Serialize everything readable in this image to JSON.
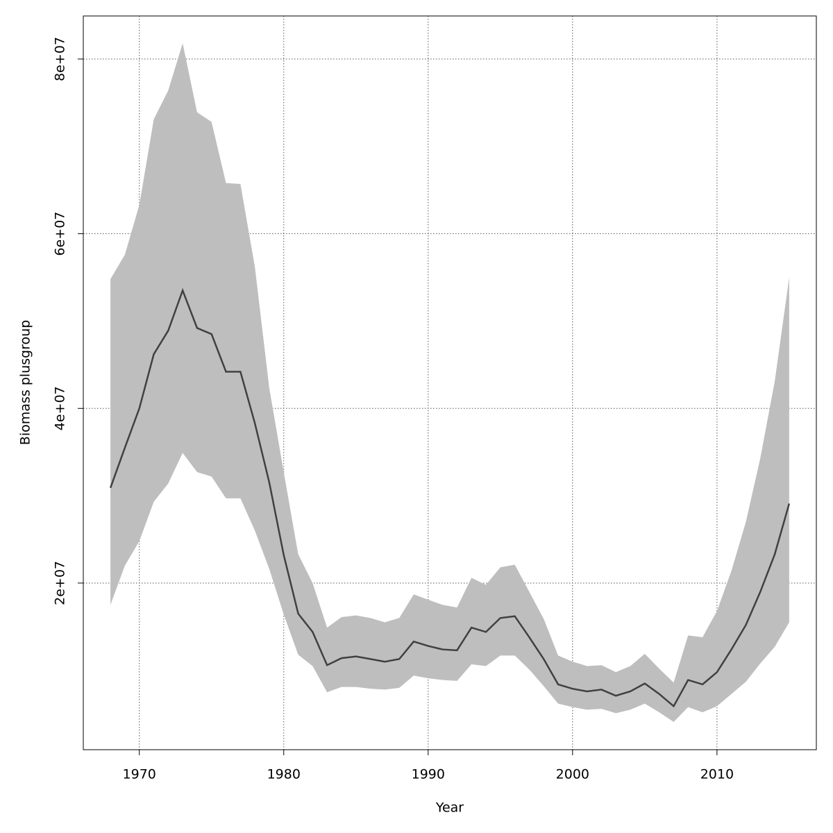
{
  "chart_data": {
    "type": "line",
    "x_label": "Year",
    "y_label": "Biomass plusgroup",
    "x": [
      1968,
      1969,
      1970,
      1971,
      1972,
      1973,
      1974,
      1975,
      1976,
      1977,
      1978,
      1979,
      1980,
      1981,
      1982,
      1983,
      1984,
      1985,
      1986,
      1987,
      1988,
      1989,
      1990,
      1991,
      1992,
      1993,
      1994,
      1995,
      1996,
      1997,
      1998,
      1999,
      2000,
      2001,
      2002,
      2003,
      2004,
      2005,
      2006,
      2007,
      2008,
      2009,
      2010,
      2011,
      2012,
      2013,
      2014,
      2015
    ],
    "series": [
      {
        "color": "#404040",
        "values": [
          30900000.0,
          35500000.0,
          40000000.0,
          46200000.0,
          48900000.0,
          53500000.0,
          49200000.0,
          48500000.0,
          44200000.0,
          44200000.0,
          38300000.0,
          31500000.0,
          23200000.0,
          16500000.0,
          14400000.0,
          10600000.0,
          11400000.0,
          11600000.0,
          11300000.0,
          11000000.0,
          11300000.0,
          13300000.0,
          12800000.0,
          12400000.0,
          12300000.0,
          14900000.0,
          14400000.0,
          16000000.0,
          16200000.0,
          13800000.0,
          11300000.0,
          8400000.0,
          7900000.0,
          7600000.0,
          7800000.0,
          7100000.0,
          7600000.0,
          8500000.0,
          7300000.0,
          5900000.0,
          8900000.0,
          8400000.0,
          9800000.0,
          12400000.0,
          15200000.0,
          19000000.0,
          23300000.0,
          29100000.0
        ]
      }
    ],
    "band": {
      "color": "#bebebe",
      "upper": [
        54800000.0,
        57600000.0,
        63300000.0,
        73100000.0,
        76400000.0,
        81800000.0,
        73900000.0,
        72800000.0,
        65800000.0,
        65700000.0,
        56200000.0,
        42300000.0,
        32700000.0,
        23300000.0,
        20000000.0,
        14900000.0,
        16100000.0,
        16300000.0,
        16000000.0,
        15500000.0,
        16000000.0,
        18700000.0,
        18100000.0,
        17500000.0,
        17200000.0,
        20600000.0,
        19800000.0,
        21800000.0,
        22100000.0,
        19000000.0,
        15900000.0,
        11700000.0,
        11000000.0,
        10500000.0,
        10600000.0,
        9800000.0,
        10500000.0,
        11900000.0,
        10200000.0,
        8600000.0,
        14000000.0,
        13800000.0,
        16800000.0,
        21400000.0,
        27000000.0,
        34300000.0,
        43100000.0,
        55000000.0
      ],
      "lower": [
        17500000.0,
        22000000.0,
        24800000.0,
        29300000.0,
        31400000.0,
        34900000.0,
        32700000.0,
        32200000.0,
        29700000.0,
        29700000.0,
        26000000.0,
        21600000.0,
        16400000.0,
        11800000.0,
        10500000.0,
        7500000.0,
        8100000.0,
        8100000.0,
        7900000.0,
        7800000.0,
        8000000.0,
        9400000.0,
        9100000.0,
        8900000.0,
        8800000.0,
        10700000.0,
        10500000.0,
        11700000.0,
        11700000.0,
        10100000.0,
        8200000.0,
        6200000.0,
        5800000.0,
        5500000.0,
        5600000.0,
        5100000.0,
        5500000.0,
        6200000.0,
        5200000.0,
        4100000.0,
        5800000.0,
        5200000.0,
        5900000.0,
        7300000.0,
        8700000.0,
        10800000.0,
        12700000.0,
        15500000.0
      ]
    },
    "xlim": [
      1966.12,
      2016.88
    ],
    "xticks": [
      1970,
      1980,
      1990,
      2000,
      2010
    ],
    "ylim": [
      920000,
      84930000
    ],
    "yticks": [
      {
        "value": 20000000.0,
        "label": "2e+07"
      },
      {
        "value": 40000000.0,
        "label": "4e+07"
      },
      {
        "value": 60000000.0,
        "label": "6e+07"
      },
      {
        "value": 80000000.0,
        "label": "8e+07"
      }
    ],
    "grid": true
  }
}
